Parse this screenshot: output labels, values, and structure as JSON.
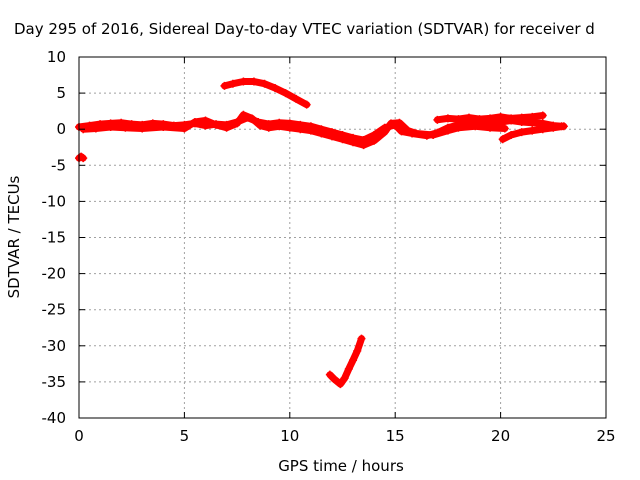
{
  "chart_data": {
    "type": "scatter",
    "title": "Day 295 of 2016, Sidereal Day-to-day VTEC variation (SDTVAR) for receiver d",
    "xlabel": "GPS time / hours",
    "ylabel": "SDTVAR / TECUs",
    "xlim": [
      0,
      25
    ],
    "ylim": [
      -40,
      10
    ],
    "xticks": [
      0,
      5,
      10,
      15,
      20,
      25
    ],
    "yticks": [
      10,
      5,
      0,
      -5,
      -10,
      -15,
      -20,
      -25,
      -30,
      -35,
      -40
    ],
    "grid": true,
    "marker": "plus",
    "series": [
      {
        "name": "SDTVAR",
        "color": "#ff0000",
        "segments": [
          [
            [
              0.0,
              -4.0
            ],
            [
              0.1,
              -3.8
            ],
            [
              0.2,
              -4.0
            ]
          ],
          [
            [
              0.0,
              0.3
            ],
            [
              0.5,
              0.5
            ],
            [
              1.0,
              0.7
            ],
            [
              1.5,
              0.8
            ],
            [
              2.0,
              0.9
            ],
            [
              2.5,
              0.7
            ],
            [
              3.0,
              0.6
            ],
            [
              3.5,
              0.8
            ],
            [
              4.0,
              0.7
            ],
            [
              4.5,
              0.5
            ],
            [
              5.0,
              0.6
            ],
            [
              5.5,
              0.8
            ],
            [
              6.0,
              0.5
            ],
            [
              6.5,
              0.7
            ],
            [
              7.0,
              0.6
            ],
            [
              7.5,
              1.0
            ],
            [
              8.0,
              1.6
            ],
            [
              8.5,
              1.0
            ],
            [
              9.0,
              0.7
            ],
            [
              9.5,
              0.9
            ],
            [
              10.0,
              0.8
            ],
            [
              10.5,
              0.6
            ],
            [
              11.0,
              0.4
            ],
            [
              11.5,
              0.0
            ],
            [
              12.0,
              -0.4
            ],
            [
              12.5,
              -0.8
            ],
            [
              13.0,
              -1.2
            ],
            [
              13.5,
              -1.5
            ],
            [
              14.0,
              -0.8
            ],
            [
              14.5,
              0.2
            ],
            [
              15.0,
              0.6
            ],
            [
              15.3,
              -0.3
            ],
            [
              15.8,
              -0.6
            ],
            [
              16.5,
              -0.9
            ],
            [
              17.0,
              -0.5
            ],
            [
              17.5,
              0.2
            ],
            [
              18.0,
              0.6
            ],
            [
              18.5,
              0.9
            ],
            [
              19.0,
              1.0
            ],
            [
              19.5,
              0.8
            ],
            [
              20.0,
              1.0
            ],
            [
              20.5,
              1.2
            ],
            [
              21.0,
              1.0
            ],
            [
              21.5,
              0.9
            ],
            [
              22.0,
              0.8
            ],
            [
              22.5,
              0.5
            ],
            [
              22.9,
              0.4
            ]
          ],
          [
            [
              0.2,
              0.0
            ],
            [
              0.8,
              0.1
            ],
            [
              1.5,
              0.3
            ],
            [
              2.2,
              0.2
            ],
            [
              3.0,
              0.1
            ],
            [
              4.0,
              0.3
            ],
            [
              5.0,
              0.1
            ],
            [
              5.5,
              1.0
            ],
            [
              6.0,
              1.2
            ],
            [
              6.5,
              0.6
            ],
            [
              7.0,
              0.2
            ],
            [
              7.5,
              0.8
            ],
            [
              7.8,
              2.0
            ],
            [
              8.2,
              1.5
            ],
            [
              8.6,
              0.5
            ],
            [
              9.0,
              0.2
            ],
            [
              9.5,
              0.4
            ],
            [
              10.0,
              0.2
            ],
            [
              10.5,
              0.0
            ],
            [
              11.0,
              -0.2
            ],
            [
              11.5,
              -0.6
            ],
            [
              12.0,
              -1.0
            ],
            [
              12.5,
              -1.4
            ],
            [
              13.0,
              -1.8
            ],
            [
              13.5,
              -2.2
            ],
            [
              14.0,
              -1.6
            ],
            [
              14.5,
              -0.4
            ],
            [
              14.8,
              0.8
            ],
            [
              15.2,
              0.9
            ],
            [
              15.6,
              -0.2
            ],
            [
              16.0,
              -0.6
            ],
            [
              16.8,
              -0.8
            ],
            [
              17.5,
              -0.2
            ],
            [
              18.0,
              0.2
            ],
            [
              18.8,
              0.4
            ],
            [
              19.5,
              0.2
            ],
            [
              20.2,
              0.1
            ]
          ],
          [
            [
              17.0,
              1.3
            ],
            [
              17.5,
              1.5
            ],
            [
              18.0,
              1.4
            ],
            [
              18.5,
              1.6
            ],
            [
              19.0,
              1.4
            ],
            [
              19.5,
              1.5
            ],
            [
              20.0,
              1.7
            ],
            [
              20.5,
              1.5
            ],
            [
              21.0,
              1.6
            ],
            [
              21.5,
              1.7
            ],
            [
              22.0,
              1.9
            ]
          ],
          [
            [
              20.1,
              -1.4
            ],
            [
              20.5,
              -0.8
            ],
            [
              21.0,
              -0.4
            ],
            [
              21.5,
              -0.2
            ],
            [
              22.0,
              0.0
            ],
            [
              22.5,
              0.2
            ],
            [
              23.0,
              0.4
            ]
          ],
          [
            [
              6.9,
              6.0
            ],
            [
              7.3,
              6.3
            ],
            [
              7.8,
              6.6
            ],
            [
              8.3,
              6.6
            ],
            [
              8.8,
              6.3
            ],
            [
              9.3,
              5.7
            ],
            [
              9.8,
              5.0
            ],
            [
              10.3,
              4.2
            ],
            [
              10.8,
              3.4
            ]
          ],
          [
            [
              11.9,
              -34.0
            ],
            [
              12.1,
              -34.6
            ],
            [
              12.4,
              -35.3
            ],
            [
              12.6,
              -34.5
            ],
            [
              12.8,
              -33.2
            ],
            [
              13.0,
              -32.0
            ],
            [
              13.2,
              -30.7
            ],
            [
              13.4,
              -29.0
            ]
          ]
        ]
      }
    ]
  }
}
